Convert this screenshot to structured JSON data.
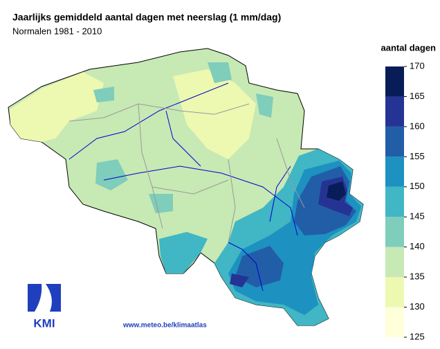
{
  "title": "Jaarlijks gemiddeld aantal dagen met neerslag (1 mm/dag)",
  "subtitle": "Normalen 1981 - 2010",
  "legend": {
    "title": "aantal dagen",
    "ticks": [
      125,
      130,
      135,
      140,
      145,
      150,
      155,
      160,
      165,
      170
    ],
    "colors": [
      "#ffffd9",
      "#edf8b1",
      "#c7e9b4",
      "#7fcdbb",
      "#41b6c4",
      "#1d91c0",
      "#225ea8",
      "#253494",
      "#081d58"
    ]
  },
  "source": "www.meteo.be/klimaatlas",
  "logo": "KMI"
}
